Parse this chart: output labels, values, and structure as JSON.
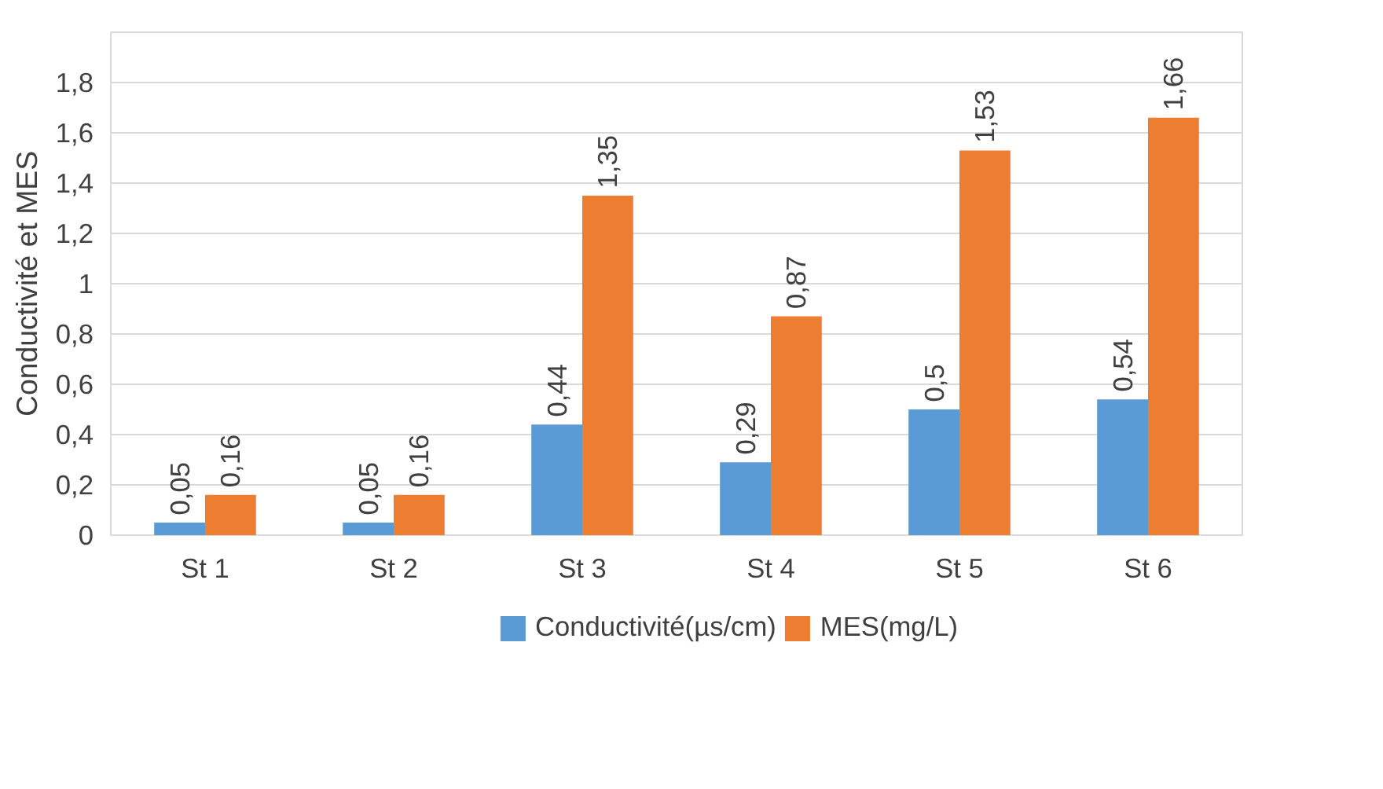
{
  "chart_data": {
    "type": "bar",
    "ylabel": "Conductivité et MES",
    "categories": [
      "St 1",
      "St 2",
      "St 3",
      "St 4",
      "St 5",
      "St 6"
    ],
    "series": [
      {
        "name": "Conductivité(µs/cm)",
        "color": "#5b9bd5",
        "values": [
          0.05,
          0.05,
          0.44,
          0.29,
          0.5,
          0.54
        ],
        "value_labels": [
          "0,05",
          "0,05",
          "0,44",
          "0,29",
          "0,5",
          "0,54"
        ]
      },
      {
        "name": "MES(mg/L)",
        "color": "#ed7d31",
        "values": [
          0.16,
          0.16,
          1.35,
          0.87,
          1.53,
          1.66
        ],
        "value_labels": [
          "0,16",
          "0,16",
          "1,35",
          "0,87",
          "1,53",
          "1,66"
        ]
      }
    ],
    "ylim": [
      0,
      2.0
    ],
    "yticks": [
      0,
      {
        "value": 0.2,
        "label": "0,2"
      },
      {
        "value": 0.4,
        "label": "0,4"
      },
      {
        "value": 0.6,
        "label": "0,6"
      },
      {
        "value": 0.8,
        "label": "0,8"
      },
      1,
      {
        "value": 1.2,
        "label": "1,2"
      },
      {
        "value": 1.4,
        "label": "1,4"
      },
      {
        "value": 1.6,
        "label": "1,6"
      },
      {
        "value": 1.8,
        "label": "1,8"
      }
    ],
    "grid": "y",
    "legend": "bottom"
  }
}
